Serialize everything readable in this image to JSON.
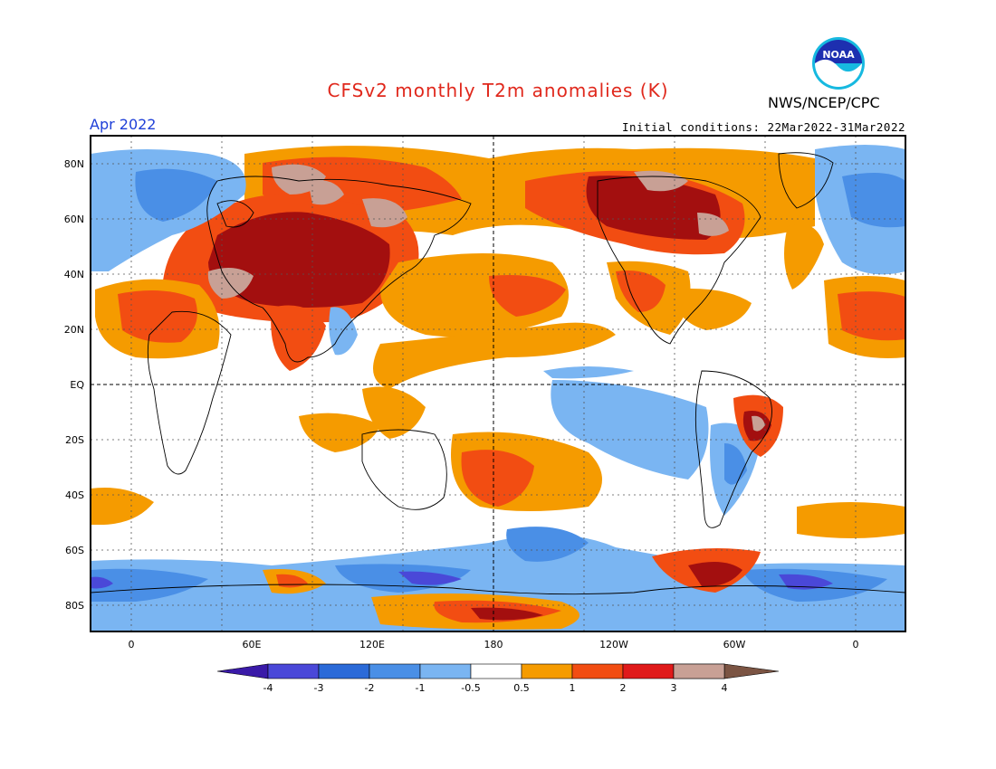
{
  "header": {
    "title": "CFSv2 monthly T2m anomalies (K)",
    "organization": "NWS/NCEP/CPC",
    "logo_text": "NOAA",
    "month": "Apr 2022",
    "initial_conditions": "Initial conditions: 22Mar2022-31Mar2022"
  },
  "map": {
    "lat_labels": [
      "80N",
      "60N",
      "40N",
      "20N",
      "EQ",
      "20S",
      "40S",
      "60S",
      "80S"
    ],
    "lon_labels": [
      "0",
      "60E",
      "120E",
      "180",
      "120W",
      "60W",
      "0"
    ]
  },
  "legend": {
    "values": [
      "-4",
      "-3",
      "-2",
      "-1",
      "-0.5",
      "0.5",
      "1",
      "2",
      "3",
      "4"
    ],
    "colors": [
      "#3a1aa8",
      "#4a48d8",
      "#2b6ad8",
      "#4a8fe6",
      "#7ab5f2",
      "#ffffff",
      "#f59b00",
      "#f24d12",
      "#e01a1a",
      "#a30f0f",
      "#c8a095",
      "#7b5443"
    ]
  },
  "colors": {
    "title": "#e0281c",
    "month": "#1e3fd8"
  }
}
